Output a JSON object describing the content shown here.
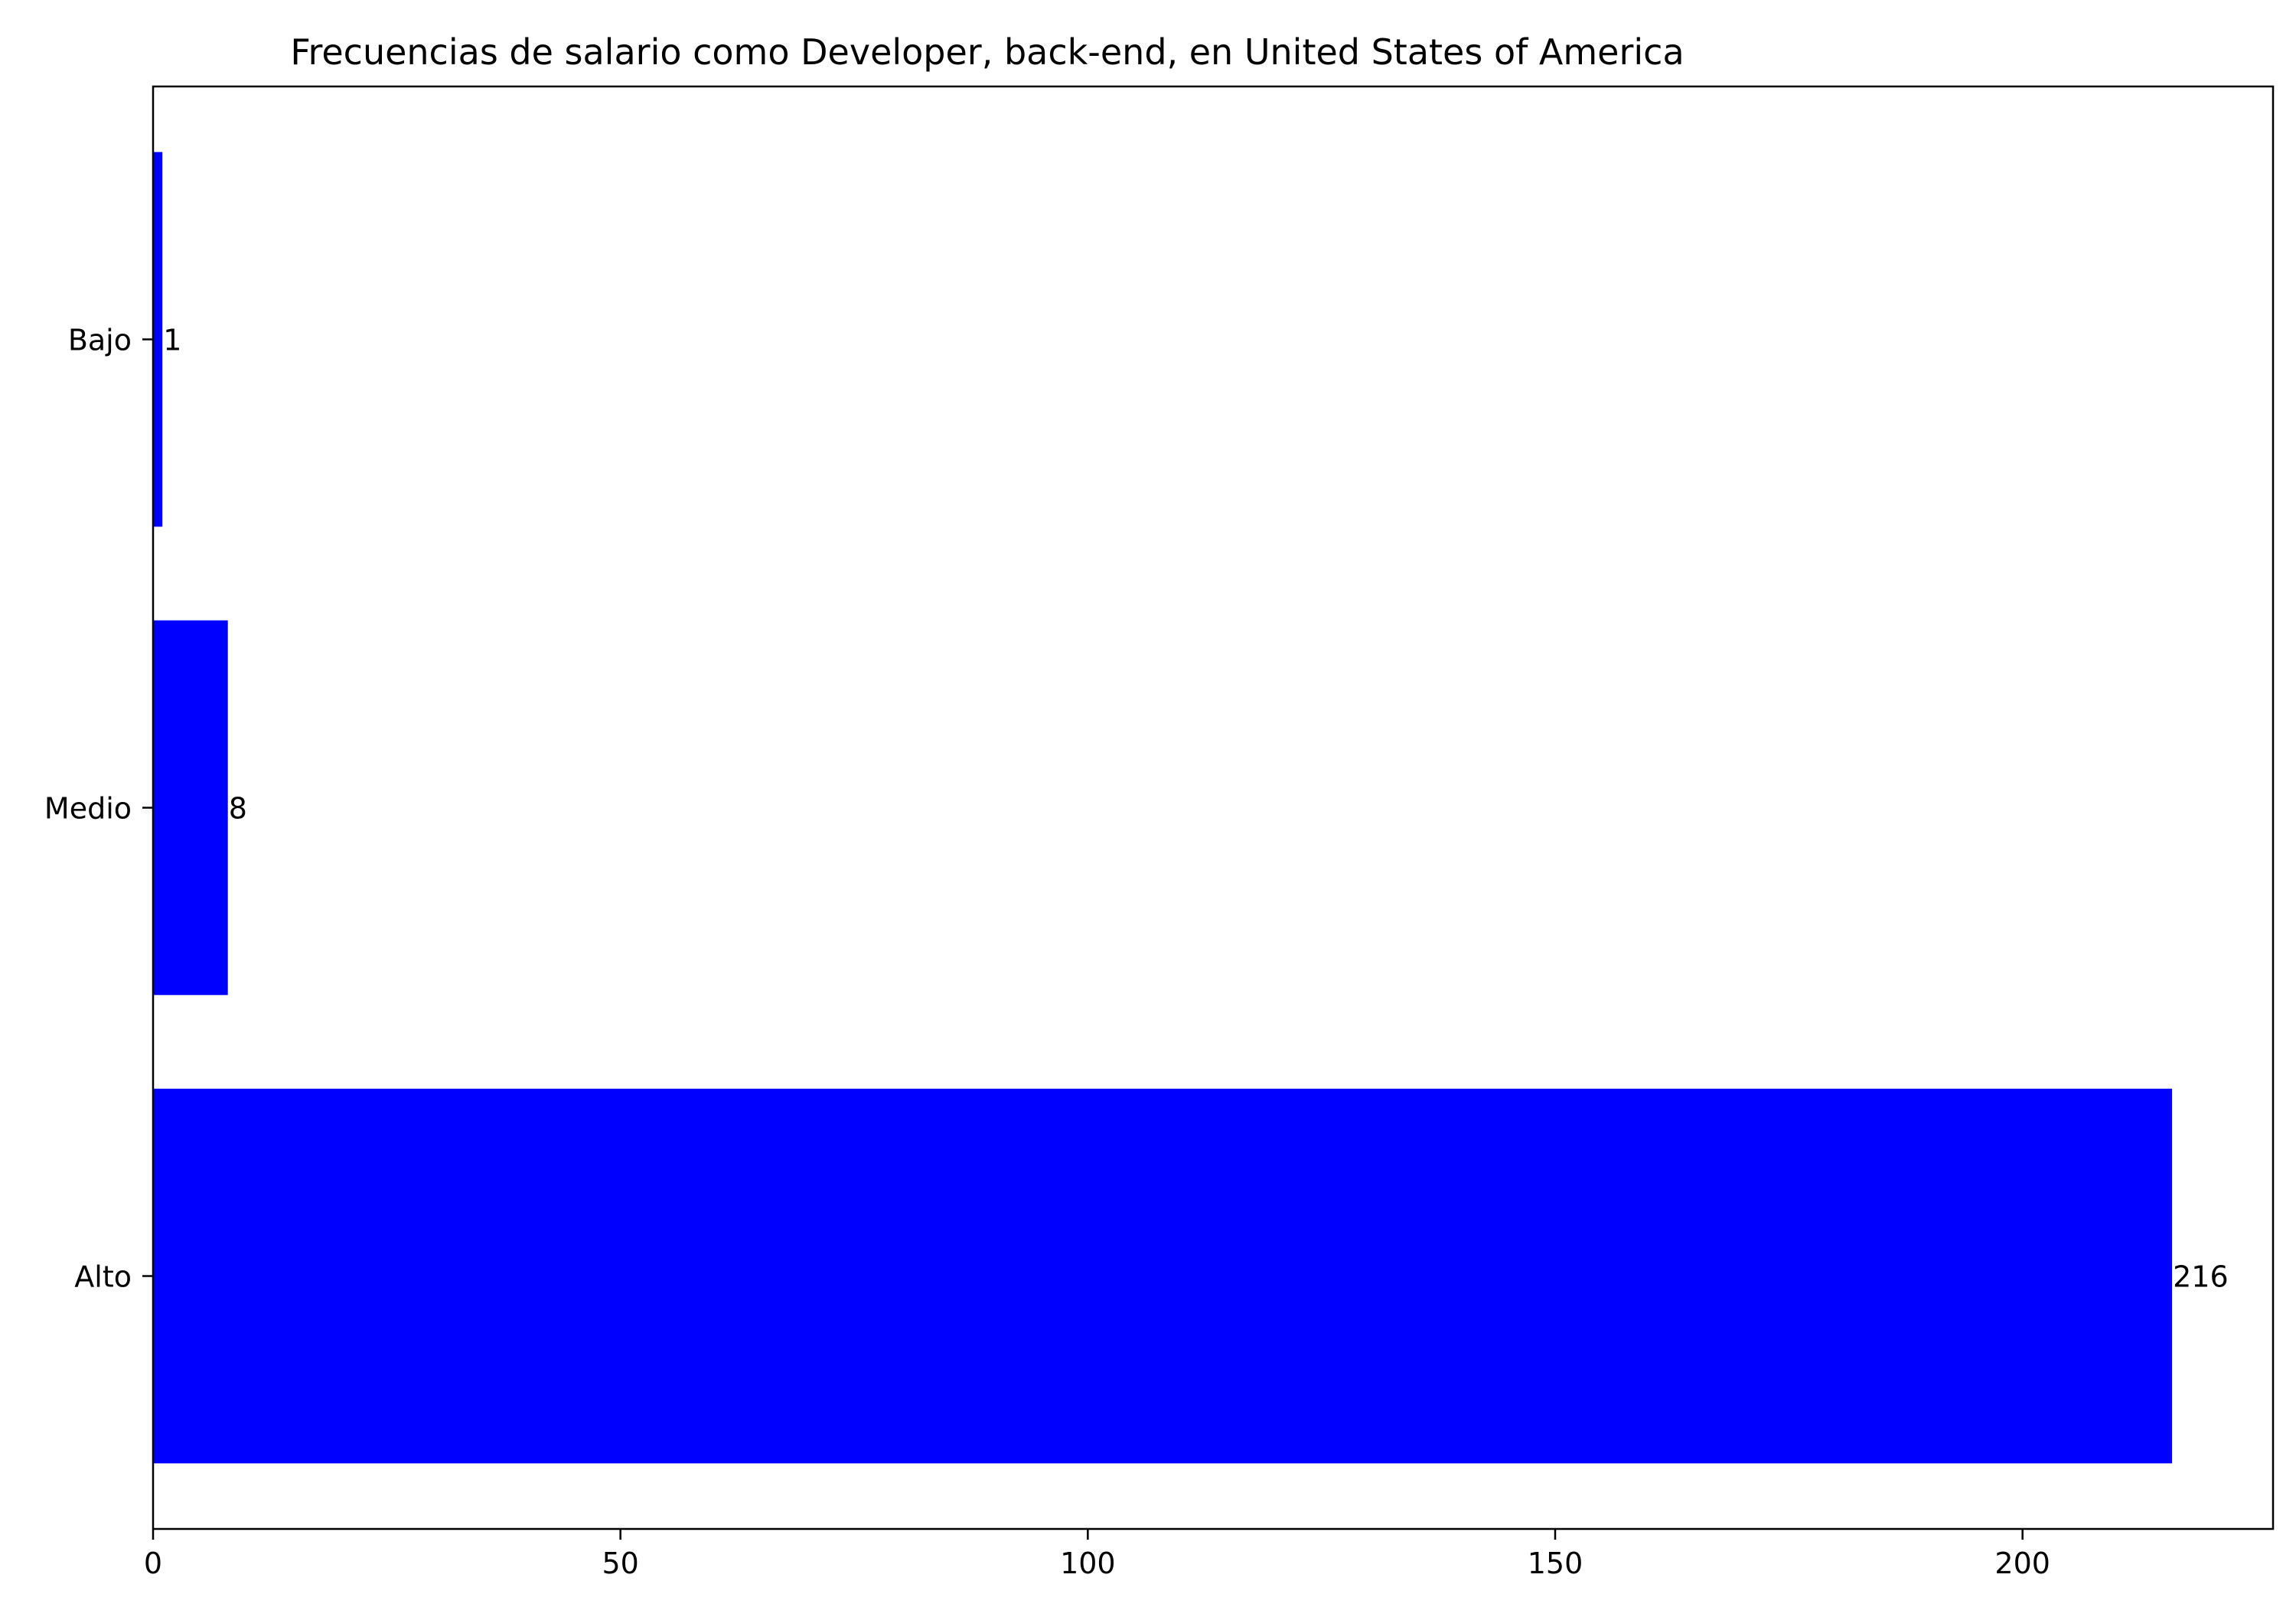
{
  "chart_data": {
    "type": "bar",
    "orientation": "horizontal",
    "title": "Frecuencias de salario como Developer, back-end, en United States of America",
    "xlabel": "",
    "ylabel": "",
    "categories": [
      "Alto",
      "Medio",
      "Bajo"
    ],
    "values": [
      216,
      8,
      1
    ],
    "data_labels": [
      "216",
      "8",
      "1"
    ],
    "xlim": [
      0,
      226.8
    ],
    "x_ticks": [
      0,
      50,
      100,
      150,
      200
    ],
    "x_tick_labels": [
      "0",
      "50",
      "100",
      "150",
      "200"
    ],
    "grid": false,
    "legend": "none",
    "bar_color": "#0000ff"
  }
}
